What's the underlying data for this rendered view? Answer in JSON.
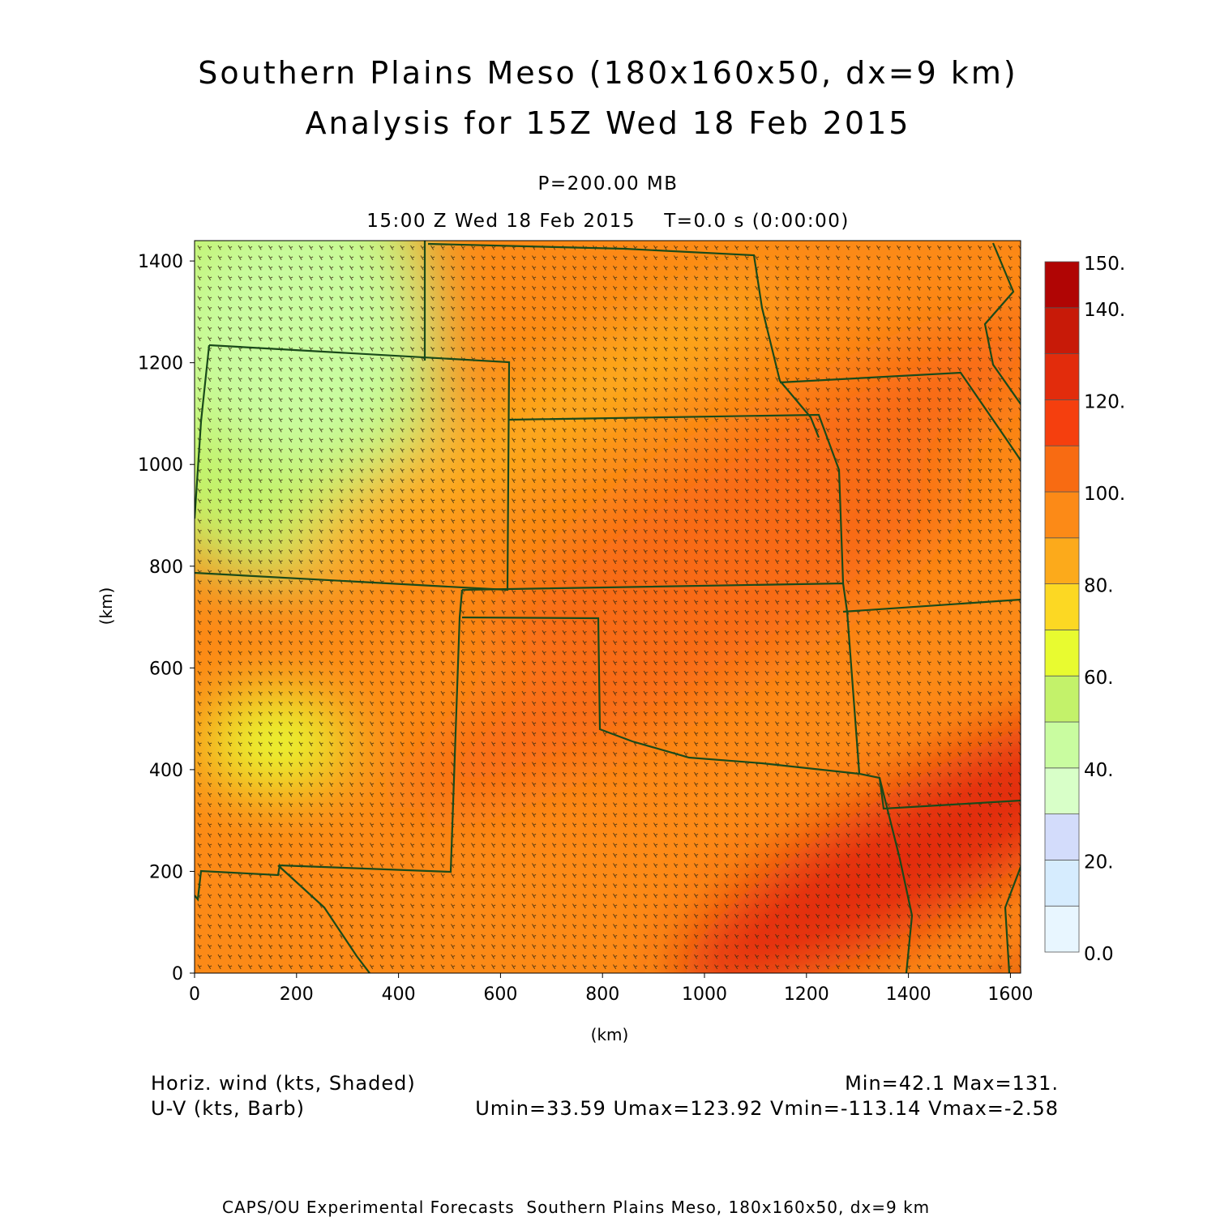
{
  "header": {
    "title_line1": "Southern Plains Meso (180x160x50, dx=9 km)",
    "title_line2": "Analysis for 15Z Wed 18 Feb 2015",
    "level": "P=200.00 MB",
    "time": "15:00 Z Wed 18 Feb 2015    T=0.0 s (0:00:00)"
  },
  "axes": {
    "x_ticks": [
      "0",
      "200",
      "400",
      "600",
      "800",
      "1000",
      "1200",
      "1400",
      "1600"
    ],
    "y_ticks": [
      "0",
      "200",
      "400",
      "600",
      "800",
      "1000",
      "1200",
      "1400"
    ],
    "x_label": "(km)",
    "y_label": "(km)",
    "x_range_km": [
      0,
      1620
    ],
    "y_range_km": [
      0,
      1440
    ]
  },
  "colorbar": {
    "labels": [
      "0.0",
      "20.",
      "40.",
      "60.",
      "80.",
      "100.",
      "120.",
      "140.",
      "150."
    ],
    "range": [
      0,
      150
    ],
    "bins": [
      {
        "lo": 0,
        "hi": 10,
        "color": "#e8f6ff"
      },
      {
        "lo": 10,
        "hi": 20,
        "color": "#d6ecfe"
      },
      {
        "lo": 20,
        "hi": 30,
        "color": "#d3dcfb"
      },
      {
        "lo": 30,
        "hi": 40,
        "color": "#d8ffc8"
      },
      {
        "lo": 40,
        "hi": 50,
        "color": "#c9fca0"
      },
      {
        "lo": 50,
        "hi": 60,
        "color": "#c3f26a"
      },
      {
        "lo": 60,
        "hi": 70,
        "color": "#e8fb30"
      },
      {
        "lo": 70,
        "hi": 80,
        "color": "#fcd823"
      },
      {
        "lo": 80,
        "hi": 90,
        "color": "#fcaa1b"
      },
      {
        "lo": 90,
        "hi": 100,
        "color": "#fc8a17"
      },
      {
        "lo": 100,
        "hi": 110,
        "color": "#f86b12"
      },
      {
        "lo": 110,
        "hi": 120,
        "color": "#f53f0e"
      },
      {
        "lo": 120,
        "hi": 130,
        "color": "#e22c0c"
      },
      {
        "lo": 130,
        "hi": 140,
        "color": "#c81a08"
      },
      {
        "lo": 140,
        "hi": 150,
        "color": "#b00504"
      }
    ]
  },
  "footer": {
    "field1": "Horiz. wind (kts, Shaded)",
    "field2": "U-V (kts, Barb)",
    "minmax": "Min=42.1 Max=131.",
    "uv_minmax": "Umin=33.59 Umax=123.92 Vmin=-113.14 Vmax=-2.58",
    "credit": "CAPS/OU Experimental Forecasts  Southern Plains Meso, 180x160x50, dx=9 km"
  },
  "colors": {
    "boundary": "#1a4a1a",
    "barb": "#3a2a10"
  }
}
